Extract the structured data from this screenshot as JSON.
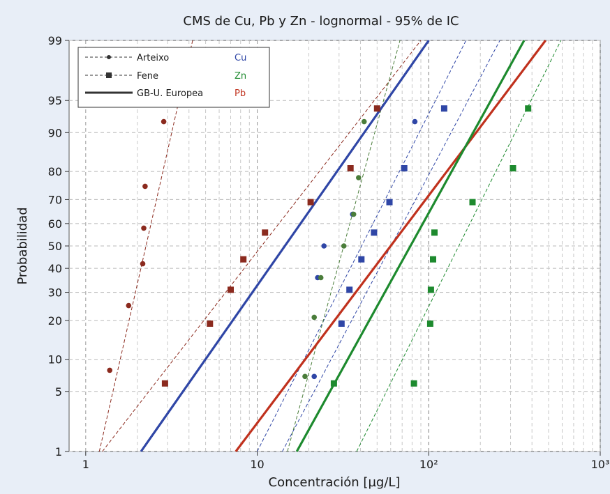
{
  "chart_data": {
    "type": "scatter",
    "title": "CMS de Cu, Pb y Zn - lognormal - 95% de IC",
    "xlabel": "Concentración [µg/L]",
    "ylabel": "Probabilidad",
    "x_scale": "log",
    "y_scale": "probability",
    "xlim": [
      0.8,
      1000
    ],
    "ylim": [
      1,
      99
    ],
    "x_ticks": [
      {
        "value": 1,
        "label": "1"
      },
      {
        "value": 10,
        "label": "10"
      },
      {
        "value": 100,
        "label": "10²"
      },
      {
        "value": 1000,
        "label": "10³"
      }
    ],
    "y_ticks": [
      1,
      5,
      10,
      20,
      30,
      40,
      50,
      60,
      70,
      80,
      90,
      95,
      99
    ],
    "grid": true,
    "legend": {
      "placement": "top-left",
      "entries": [
        {
          "label": "Arteixo",
          "marker": "circle",
          "style": "dashed"
        },
        {
          "label": "Fene",
          "marker": "square",
          "style": "dashed"
        },
        {
          "label": "GB-U. Europea",
          "marker": "none",
          "style": "solid"
        }
      ],
      "metals": [
        {
          "label": "Cu",
          "color": "#2f46a6"
        },
        {
          "label": "Zn",
          "color": "#1d8a2e"
        },
        {
          "label": "Pb",
          "color": "#c0311d"
        }
      ]
    },
    "series": [
      {
        "metal": "Pb",
        "site": "Arteixo",
        "marker": "circle",
        "color": "#8b2a1e",
        "x": [
          1.38,
          1.78,
          2.15,
          2.18,
          2.22,
          2.85
        ],
        "y": [
          8,
          25,
          42,
          58,
          75,
          92
        ],
        "fit": {
          "p1": 1,
          "x1": 1.2,
          "p99": 99,
          "x99": 4.2
        }
      },
      {
        "metal": "Pb",
        "site": "Fene",
        "marker": "square",
        "color": "#8b2a1e",
        "x": [
          2.9,
          5.3,
          7.0,
          8.3,
          11.1,
          20.5,
          35.0,
          50.0
        ],
        "y": [
          6,
          19,
          31,
          44,
          56,
          69,
          81,
          94
        ],
        "fit": {
          "p1": 1,
          "x1": 1.25,
          "p99": 99,
          "x99": 90
        }
      },
      {
        "metal": "Cu",
        "site": "Arteixo",
        "marker": "circle",
        "color": "#2f46a6",
        "x": [
          21.5,
          22.5,
          24.5,
          36.0,
          83.0
        ],
        "y": [
          7,
          36,
          50,
          64,
          92
        ],
        "fit": {
          "p1": 1,
          "x1": 10.0,
          "p99": 99,
          "x99": 165
        }
      },
      {
        "metal": "Cu",
        "site": "Fene",
        "marker": "square",
        "color": "#2f46a6",
        "x": [
          31.0,
          34.5,
          40.5,
          48.0,
          59.0,
          72.0,
          123.0
        ],
        "y": [
          19,
          31,
          44,
          56,
          69,
          81,
          94
        ],
        "fit": {
          "p1": 1,
          "x1": 14.0,
          "p99": 99,
          "x99": 260
        }
      },
      {
        "metal": "Zn",
        "site": "Arteixo",
        "marker": "circle",
        "color": "#4a7d3a",
        "x": [
          19.0,
          21.5,
          23.5,
          32.0,
          36.5,
          39.0,
          42.0
        ],
        "y": [
          7,
          21,
          36,
          50,
          64,
          78,
          92
        ],
        "fit": {
          "p1": 1,
          "x1": 15.0,
          "p99": 99,
          "x99": 68
        }
      },
      {
        "metal": "Zn",
        "site": "Fene",
        "marker": "square",
        "color": "#1d8a2e",
        "x": [
          28.0,
          82.0,
          102.0,
          103.0,
          106.0,
          108.0,
          180.0,
          310.0,
          380.0
        ],
        "y": [
          6,
          6,
          19,
          31,
          44,
          56,
          69,
          81,
          94
        ],
        "fit": {
          "p1": 1,
          "x1": 38.0,
          "p99": 99,
          "x99": 590
        }
      },
      {
        "metal": "Cu",
        "site": "GB-U. Europea",
        "line": "solid",
        "color": "#2f46a6",
        "fit": {
          "p1": 1,
          "x1": 2.1,
          "p99": 99,
          "x99": 100
        }
      },
      {
        "metal": "Pb",
        "site": "GB-U. Europea",
        "line": "solid",
        "color": "#c0311d",
        "fit": {
          "p1": 1,
          "x1": 7.5,
          "p99": 99,
          "x99": 480
        }
      },
      {
        "metal": "Zn",
        "site": "GB-U. Europea",
        "line": "solid",
        "color": "#1d8a2e",
        "fit": {
          "p1": 1,
          "x1": 17.0,
          "p99": 99,
          "x99": 360
        }
      }
    ]
  }
}
